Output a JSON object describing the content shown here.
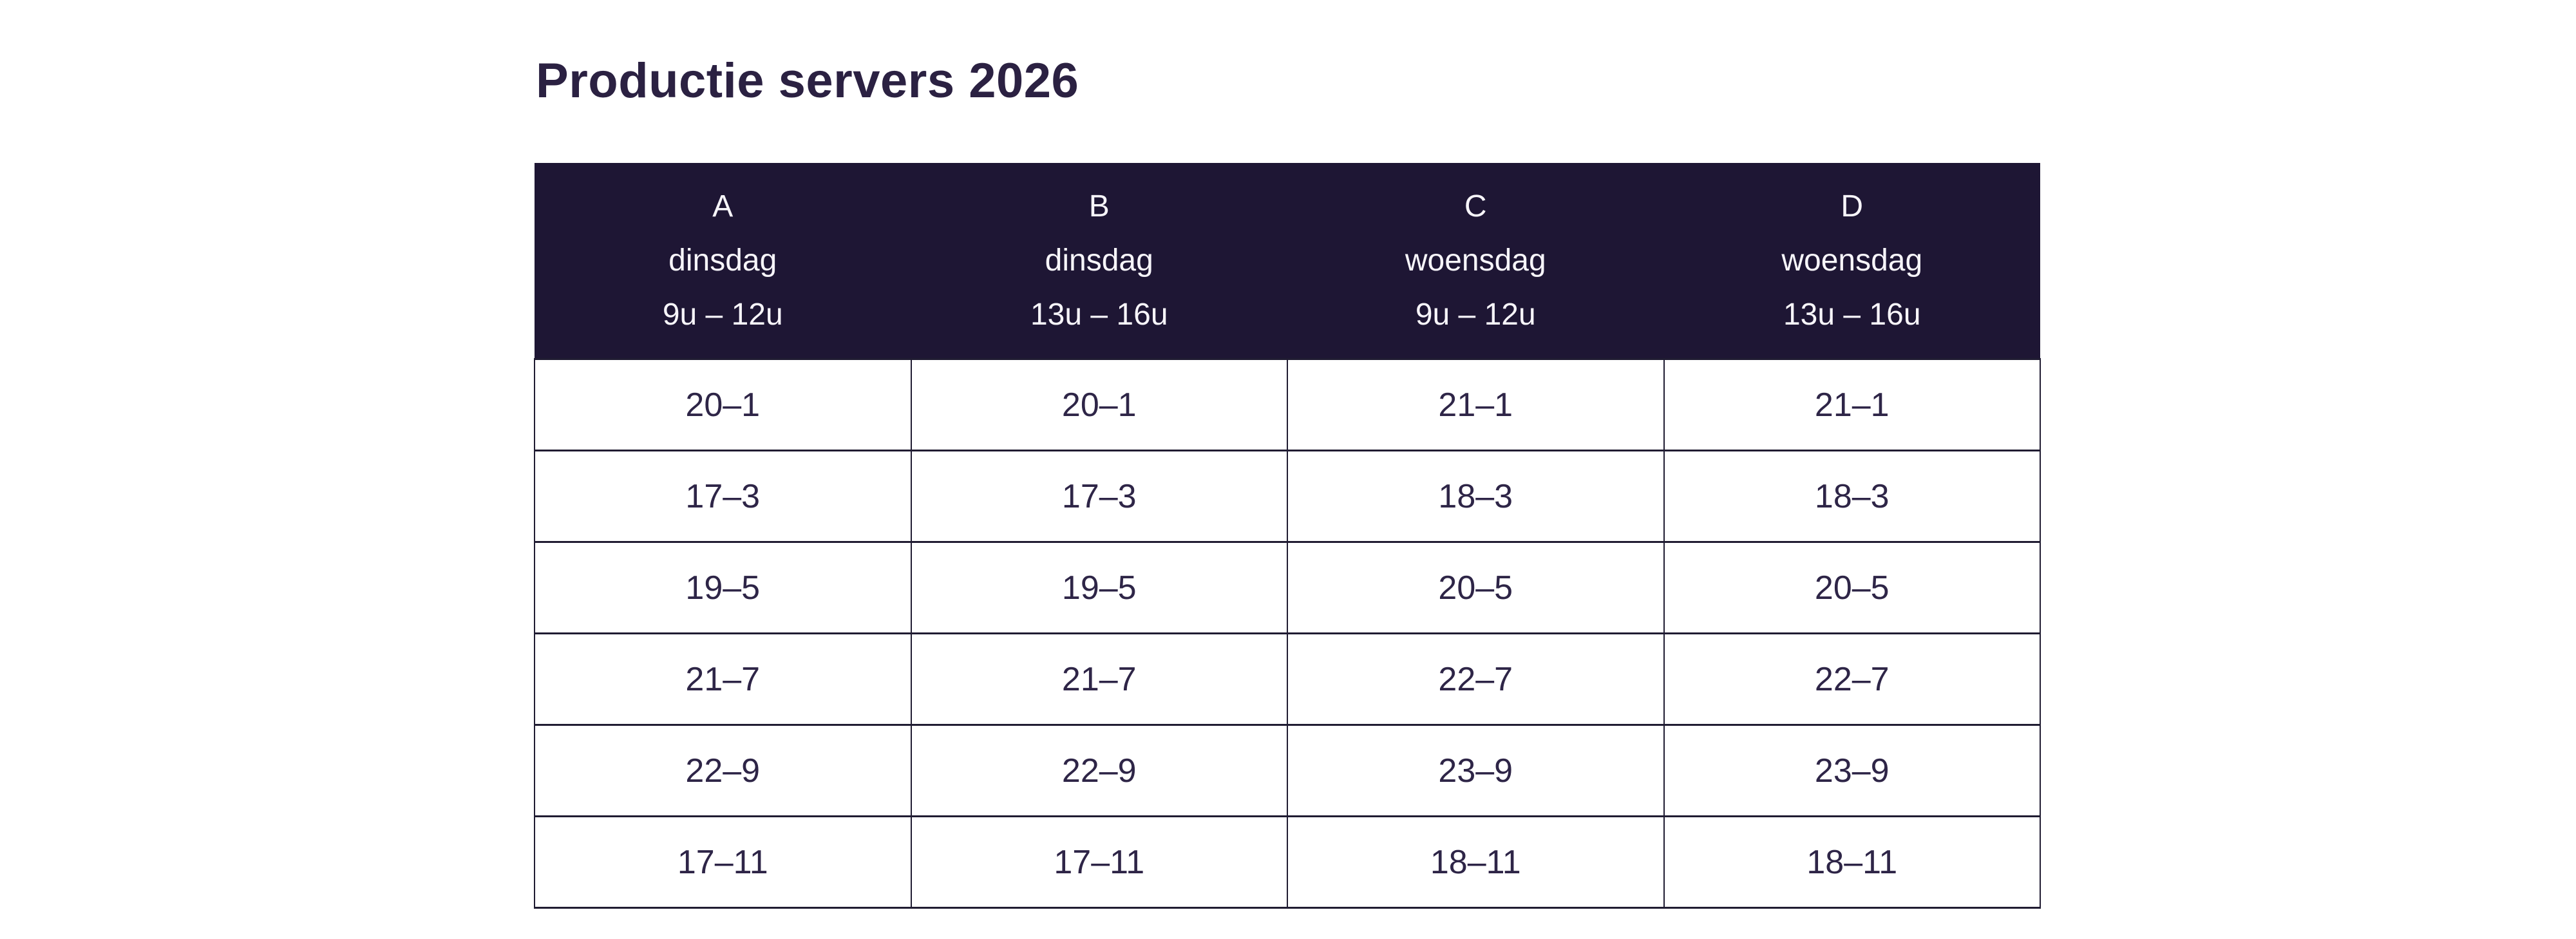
{
  "title": "Productie servers 2026",
  "theme": {
    "page_background": "#ffffff",
    "header_background": "#1e1634",
    "header_text_color": "#f7f5fa",
    "body_text_color": "#2e2547",
    "title_color": "#2b2142",
    "border_color": "#201c32"
  },
  "table": {
    "columns": [
      {
        "label": "A",
        "day": "dinsdag",
        "time": "9u – 12u"
      },
      {
        "label": "B",
        "day": "dinsdag",
        "time": "13u – 16u"
      },
      {
        "label": "C",
        "day": "woensdag",
        "time": "9u – 12u"
      },
      {
        "label": "D",
        "day": "woensdag",
        "time": "13u – 16u"
      }
    ],
    "rows": [
      [
        "20–1",
        "20–1",
        "21–1",
        "21–1"
      ],
      [
        "17–3",
        "17–3",
        "18–3",
        "18–3"
      ],
      [
        "19–5",
        "19–5",
        "20–5",
        "20–5"
      ],
      [
        "21–7",
        "21–7",
        "22–7",
        "22–7"
      ],
      [
        "22–9",
        "22–9",
        "23–9",
        "23–9"
      ],
      [
        "17–11",
        "17–11",
        "18–11",
        "18–11"
      ]
    ]
  }
}
